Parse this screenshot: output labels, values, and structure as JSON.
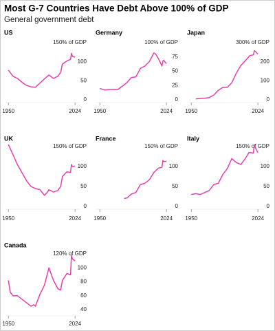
{
  "title": "Most G-7 Countries Have Debt Above 100% of GDP",
  "subtitle": "General government debt",
  "chart_data": [
    {
      "type": "line",
      "title": "US",
      "color": "#e83fae",
      "xlim": [
        1946,
        2030
      ],
      "xticks": [
        1950,
        2024
      ],
      "ylim": [
        0,
        150
      ],
      "yticks": [
        0,
        50,
        100,
        {
          "value": 150,
          "label": "150% of GDP"
        }
      ],
      "x": [
        1950,
        1955,
        1960,
        1965,
        1970,
        1975,
        1980,
        1985,
        1990,
        1995,
        2000,
        2005,
        2008,
        2010,
        2015,
        2019,
        2020,
        2021,
        2024
      ],
      "values": [
        78,
        62,
        56,
        46,
        38,
        34,
        33,
        44,
        55,
        65,
        56,
        62,
        72,
        94,
        102,
        106,
        122,
        114,
        112
      ]
    },
    {
      "type": "line",
      "title": "Germany",
      "color": "#e83fae",
      "xlim": [
        1946,
        2030
      ],
      "xticks": [
        1950,
        2024
      ],
      "ylim": [
        0,
        100
      ],
      "yticks": [
        0,
        25,
        50,
        {
          "value": 75,
          "label": "75"
        },
        {
          "value": 100,
          "label": "100% of GDP"
        }
      ],
      "x": [
        1950,
        1955,
        1960,
        1965,
        1970,
        1975,
        1980,
        1985,
        1990,
        1995,
        2000,
        2005,
        2010,
        2012,
        2015,
        2019,
        2020,
        2021,
        2024
      ],
      "values": [
        20,
        17,
        18,
        18,
        18,
        24,
        30,
        39,
        40,
        55,
        59,
        67,
        82,
        80,
        72,
        59,
        68,
        69,
        63
      ]
    },
    {
      "type": "line",
      "title": "Japan",
      "color": "#e83fae",
      "xlim": [
        1946,
        2030
      ],
      "xticks": [
        1950,
        2024
      ],
      "ylim": [
        0,
        300
      ],
      "yticks": [
        0,
        100,
        200,
        {
          "value": 300,
          "label": "300% of GDP"
        }
      ],
      "x": [
        1955,
        1960,
        1965,
        1970,
        1975,
        1980,
        1985,
        1990,
        1995,
        2000,
        2005,
        2010,
        2015,
        2019,
        2020,
        2021,
        2024
      ],
      "values": [
        5,
        7,
        8,
        12,
        25,
        50,
        65,
        65,
        90,
        140,
        180,
        205,
        232,
        236,
        258,
        255,
        240
      ]
    },
    {
      "type": "line",
      "title": "UK",
      "color": "#e83fae",
      "xlim": [
        1946,
        2030
      ],
      "xticks": [
        1950,
        2024
      ],
      "ylim": [
        0,
        150
      ],
      "yticks": [
        0,
        50,
        100,
        {
          "value": 150,
          "label": "150% of GDP"
        }
      ],
      "x": [
        1950,
        1955,
        1960,
        1965,
        1970,
        1975,
        1980,
        1985,
        1990,
        1993,
        1995,
        2000,
        2005,
        2008,
        2010,
        2015,
        2019,
        2020,
        2021,
        2024
      ],
      "values": [
        155,
        130,
        105,
        85,
        65,
        50,
        45,
        42,
        28,
        35,
        42,
        36,
        40,
        50,
        75,
        87,
        85,
        105,
        100,
        101
      ]
    },
    {
      "type": "line",
      "title": "France",
      "color": "#e83fae",
      "xlim": [
        1946,
        2030
      ],
      "xticks": [
        1950,
        2024
      ],
      "ylim": [
        0,
        150
      ],
      "yticks": [
        0,
        50,
        100,
        {
          "value": 150,
          "label": "150% of GDP"
        }
      ],
      "x": [
        1977,
        1980,
        1985,
        1990,
        1995,
        2000,
        2005,
        2010,
        2015,
        2019,
        2020,
        2021,
        2024
      ],
      "values": [
        20,
        21,
        31,
        35,
        55,
        58,
        67,
        85,
        96,
        98,
        115,
        113,
        113
      ]
    },
    {
      "type": "line",
      "title": "Italy",
      "color": "#e83fae",
      "xlim": [
        1946,
        2030
      ],
      "xticks": [
        1950,
        2024
      ],
      "ylim": [
        0,
        150
      ],
      "yticks": [
        0,
        50,
        100,
        {
          "value": 150,
          "label": "150% of GDP"
        }
      ],
      "x": [
        1950,
        1955,
        1960,
        1965,
        1970,
        1975,
        1980,
        1985,
        1990,
        1995,
        2000,
        2005,
        2010,
        2014,
        2019,
        2020,
        2021,
        2024
      ],
      "values": [
        30,
        32,
        30,
        35,
        40,
        55,
        58,
        80,
        95,
        120,
        110,
        105,
        120,
        135,
        134,
        155,
        148,
        135
      ]
    },
    {
      "type": "line",
      "title": "Canada",
      "color": "#e83fae",
      "xlim": [
        1946,
        2030
      ],
      "xticks": [
        1950,
        2024
      ],
      "ylim": [
        35,
        120
      ],
      "yticks": [
        40,
        60,
        80,
        100,
        {
          "value": 120,
          "label": "120% of GDP"
        }
      ],
      "x": [
        1950,
        1952,
        1955,
        1960,
        1965,
        1970,
        1975,
        1978,
        1980,
        1985,
        1990,
        1995,
        2000,
        2005,
        2008,
        2010,
        2015,
        2019,
        2020,
        2021,
        2024
      ],
      "values": [
        82,
        65,
        60,
        60,
        55,
        50,
        45,
        47,
        45,
        62,
        75,
        100,
        82,
        70,
        68,
        82,
        92,
        90,
        118,
        113,
        110
      ]
    }
  ]
}
